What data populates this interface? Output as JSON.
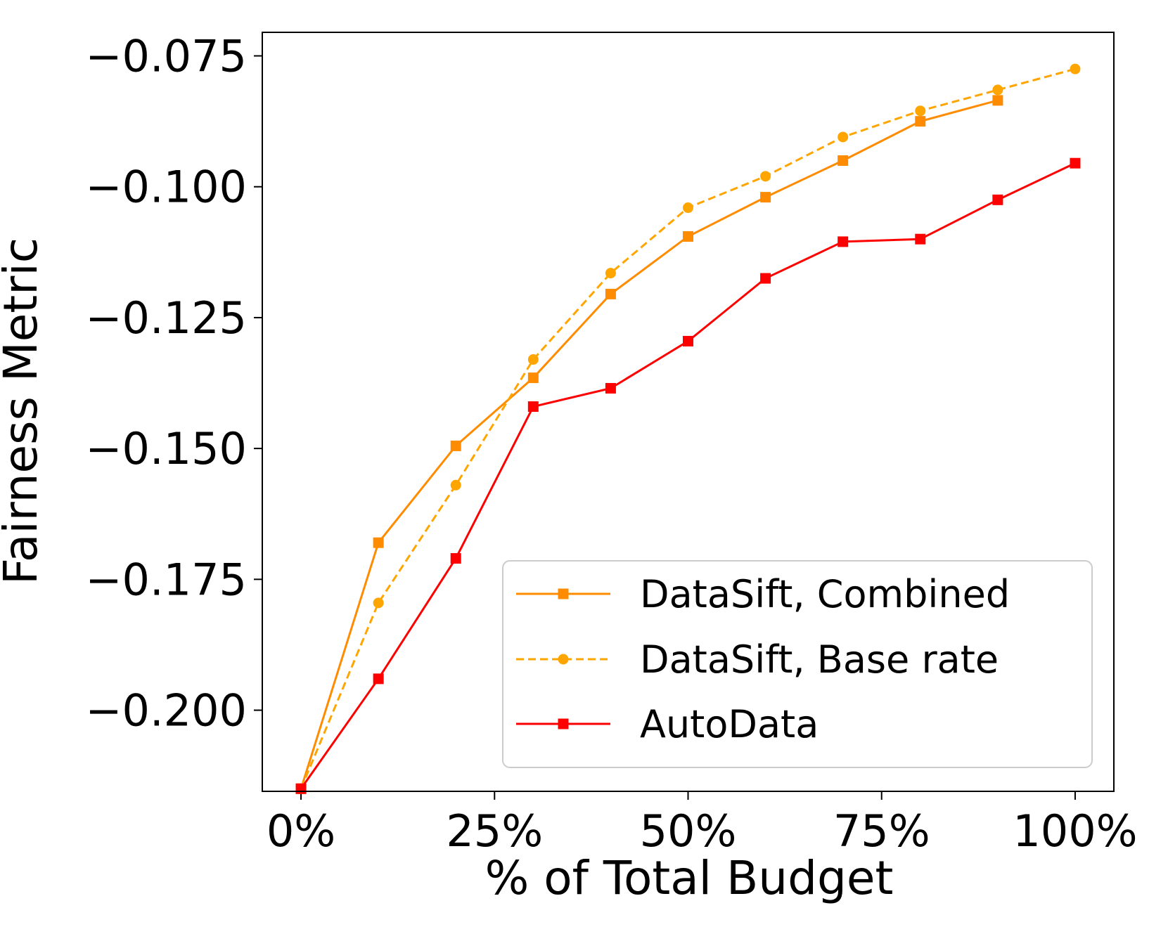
{
  "chart_data": {
    "type": "line",
    "title": "",
    "xlabel": "% of Total Budget",
    "ylabel": "Fairness Metric",
    "xlim": [
      -0.05,
      1.05
    ],
    "ylim": [
      -0.2155,
      -0.0705
    ],
    "x_ticks": [
      {
        "value": 0,
        "label": "0%"
      },
      {
        "value": 0.25,
        "label": "25%"
      },
      {
        "value": 0.5,
        "label": "50%"
      },
      {
        "value": 0.75,
        "label": "75%"
      },
      {
        "value": 1.0,
        "label": "100%"
      }
    ],
    "y_ticks": [
      {
        "value": -0.075,
        "label": "−0.075"
      },
      {
        "value": -0.1,
        "label": "−0.100"
      },
      {
        "value": -0.125,
        "label": "−0.125"
      },
      {
        "value": -0.15,
        "label": "−0.150"
      },
      {
        "value": -0.175,
        "label": "−0.175"
      },
      {
        "value": -0.2,
        "label": "−0.200"
      }
    ],
    "grid": false,
    "legend_position": "bottom-right",
    "series": [
      {
        "name": "DataSift, Combined",
        "color": "#ff8c00",
        "linestyle": "solid",
        "marker": "square",
        "x": [
          0,
          0.1,
          0.2,
          0.3,
          0.4,
          0.5,
          0.6,
          0.7,
          0.8,
          0.9
        ],
        "y": [
          -0.215,
          -0.168,
          -0.1495,
          -0.1365,
          -0.1205,
          -0.1095,
          -0.102,
          -0.095,
          -0.0875,
          -0.0835
        ]
      },
      {
        "name": "DataSift, Base rate",
        "color": "#ffa500",
        "linestyle": "dashed",
        "marker": "circle",
        "x": [
          0,
          0.1,
          0.2,
          0.3,
          0.4,
          0.5,
          0.6,
          0.7,
          0.8,
          0.9,
          1.0
        ],
        "y": [
          -0.215,
          -0.1795,
          -0.157,
          -0.133,
          -0.1165,
          -0.104,
          -0.098,
          -0.0905,
          -0.0855,
          -0.0815,
          -0.0775
        ]
      },
      {
        "name": "AutoData",
        "color": "#ff0000",
        "linestyle": "solid",
        "marker": "square",
        "x": [
          0,
          0.1,
          0.2,
          0.3,
          0.4,
          0.5,
          0.6,
          0.7,
          0.8,
          0.9,
          1.0
        ],
        "y": [
          -0.215,
          -0.194,
          -0.171,
          -0.142,
          -0.1385,
          -0.1295,
          -0.1175,
          -0.1105,
          -0.11,
          -0.1025,
          -0.0955
        ]
      }
    ]
  }
}
